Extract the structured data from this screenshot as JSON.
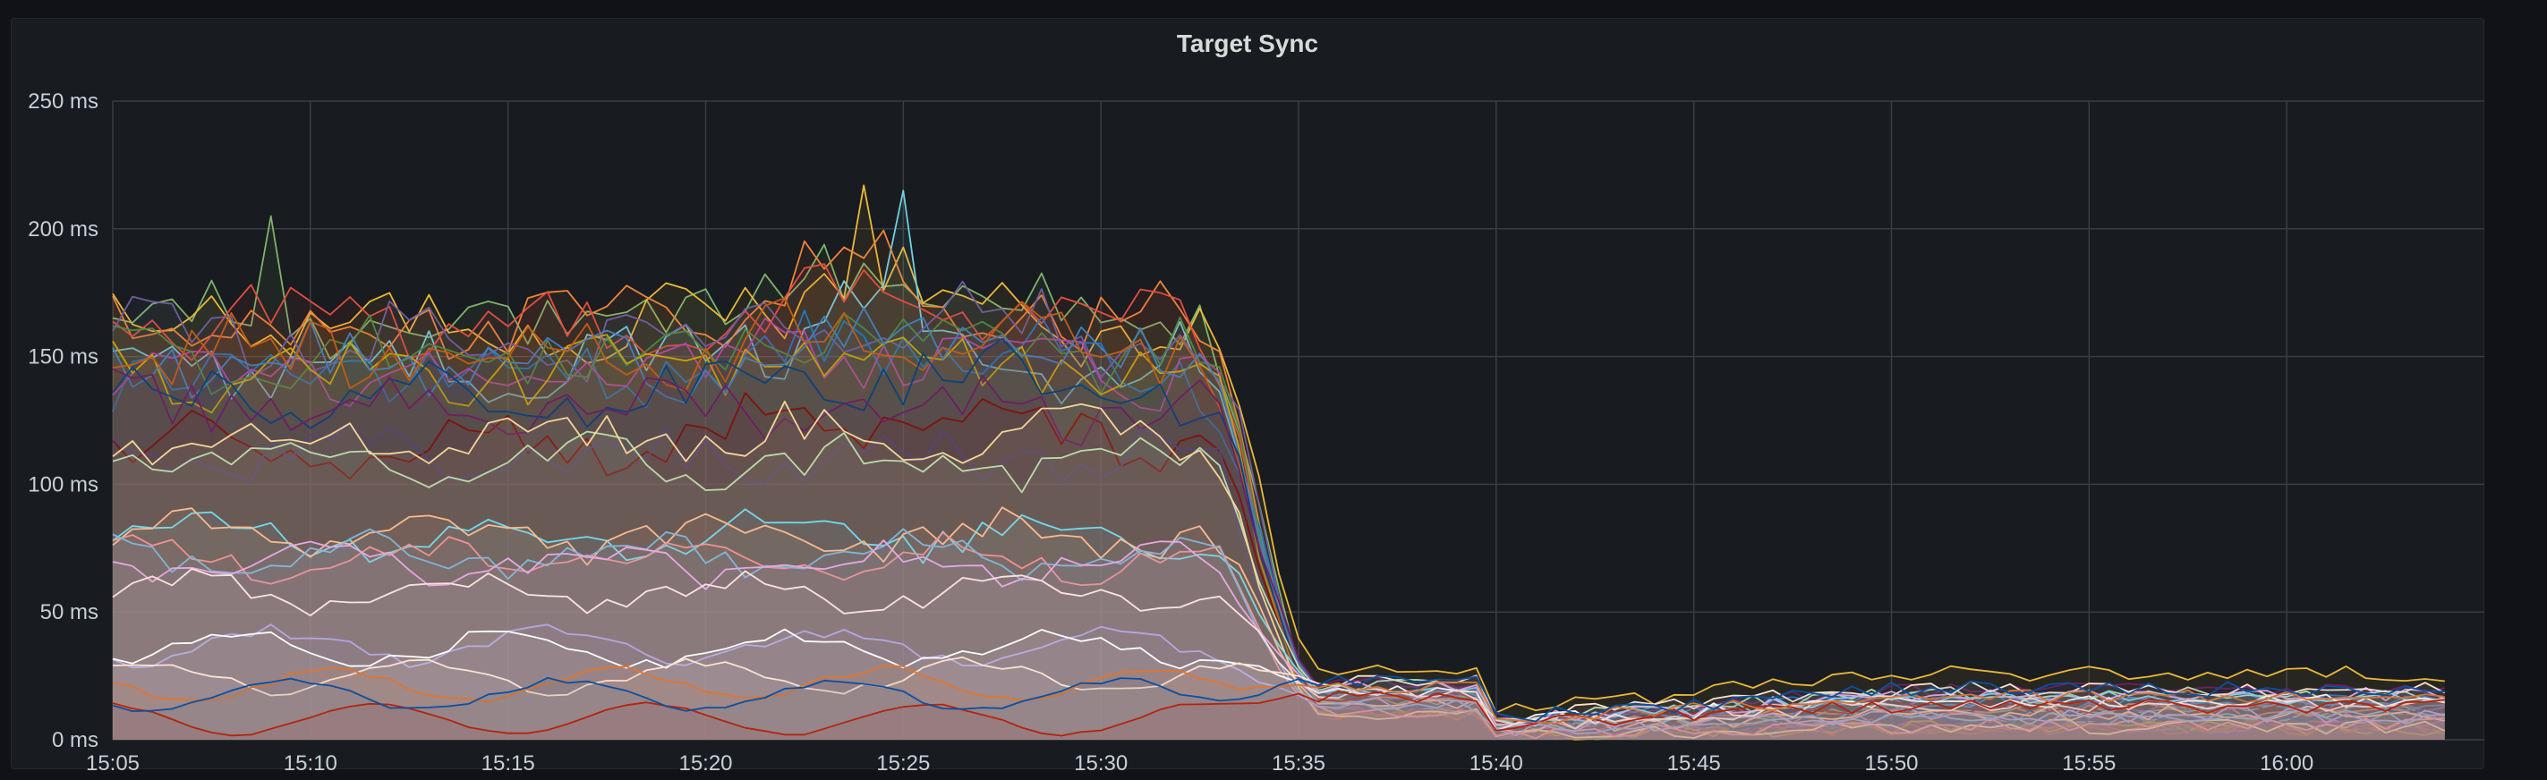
{
  "panel": {
    "title": "Target Sync"
  },
  "colors": {
    "background": "#111217",
    "panel": "#181b1f",
    "grid": "#3a3d44",
    "text": "#c7d0d9",
    "palette": [
      "#7eb26d",
      "#eab839",
      "#6ed0e0",
      "#ef843c",
      "#e24d42",
      "#1f78c1",
      "#ba43a9",
      "#705da0",
      "#508642",
      "#cca300",
      "#447ebc",
      "#c15c17",
      "#890f02",
      "#0a437c",
      "#6d1f62",
      "#584477",
      "#b7dbab",
      "#f4d598",
      "#70dbed",
      "#f9ba8f",
      "#f29191",
      "#82b5d8",
      "#e5a8e2",
      "#aea2e0",
      "#ffffff",
      "#fce2de",
      "#f9e2d2",
      "#bf1b00",
      "#e0752d",
      "#0a50a1"
    ]
  },
  "chart_data": {
    "type": "area",
    "title": "Target Sync",
    "unit": "ms",
    "x_ticks": [
      "15:05",
      "15:10",
      "15:15",
      "15:20",
      "15:25",
      "15:30",
      "15:35",
      "15:40",
      "15:45",
      "15:50",
      "15:55",
      "16:00"
    ],
    "xlim": [
      "15:05",
      "16:05"
    ],
    "ylim": [
      0,
      250
    ],
    "y_ticks": [
      "0 ms",
      "50 ms",
      "100 ms",
      "150 ms",
      "200 ms",
      "250 ms"
    ],
    "grid": true,
    "legend": "none",
    "series_count": 30,
    "series_envelopes": {
      "description_levels_ms": [
        {
          "phase": "15:05-15:32",
          "top_band": [
            140,
            205
          ],
          "upper_band": [
            110,
            170
          ],
          "middle_band": [
            60,
            110
          ],
          "lower_band": [
            30,
            80
          ],
          "bottom_band": [
            5,
            35
          ]
        },
        {
          "phase": "15:35-15:40",
          "range": [
            5,
            22
          ]
        },
        {
          "phase": "15:40-16:04",
          "range": [
            2,
            32
          ]
        }
      ]
    },
    "peaks": [
      {
        "time": "15:09",
        "value_ms": 205
      },
      {
        "time": "15:24",
        "value_ms": 217
      },
      {
        "time": "15:25",
        "value_ms": 215
      }
    ]
  }
}
